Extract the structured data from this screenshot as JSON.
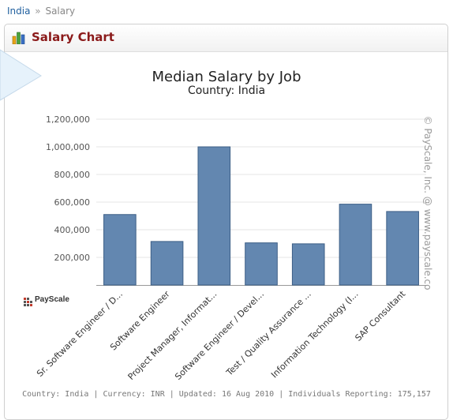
{
  "breadcrumb": {
    "items": [
      "India",
      "Salary"
    ],
    "separator": "»"
  },
  "panel": {
    "title": "Salary Chart"
  },
  "logo": {
    "text": "PayScale"
  },
  "watermark": "© PayScale, Inc. @ www.payscale.co",
  "footer": "Country: India | Currency: INR | Updated: 16 Aug 2010 | Individuals Reporting: 175,157",
  "colors": {
    "bar": "#6387b0",
    "bar_stroke": "#3d5f86",
    "title_red": "#8b1a1a",
    "link": "#1f5f9e"
  },
  "chart_data": {
    "type": "bar",
    "title": "Median Salary by Job",
    "subtitle": "Country: India",
    "categories": [
      "Sr. Software Engineer / D...",
      "Software Engineer",
      "Project Manager, Informat...",
      "Software Engineer / Devel...",
      "Test / Quality Assurance ...",
      "Information Technology (I...",
      "SAP Consultant"
    ],
    "values": [
      510000,
      315000,
      1000000,
      305000,
      298000,
      585000,
      532000
    ],
    "yticks": [
      "200,000",
      "400,000",
      "600,000",
      "800,000",
      "1,000,000",
      "1,200,000"
    ],
    "ylim": [
      0,
      1200000
    ],
    "grid": true
  }
}
